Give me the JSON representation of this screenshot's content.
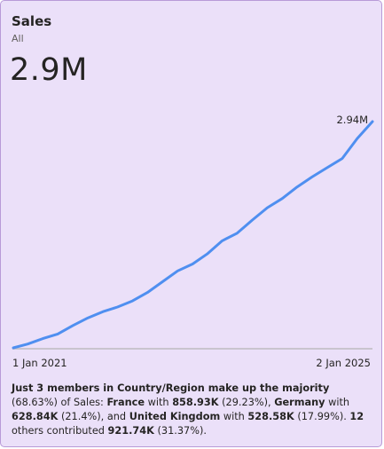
{
  "card": {
    "title": "Sales",
    "subtitle": "All",
    "kpi_value": "2.9M"
  },
  "colors": {
    "background": "#ebe0f9",
    "border": "#b89ad8",
    "line": "#4f8ff0",
    "axis": "#c9c4cf"
  },
  "chart_data": {
    "type": "line",
    "title": "",
    "xlabel": "",
    "ylabel": "",
    "x_start_label": "1 Jan 2021",
    "x_end_label": "2 Jan 2025",
    "end_value_label": "2.94M",
    "ylim": [
      0,
      2.94
    ],
    "series": [
      {
        "x": [
          "2021-01-01",
          "2021-03-01",
          "2021-05-01",
          "2021-07-01",
          "2021-09-01",
          "2021-11-01",
          "2022-01-01",
          "2022-03-01",
          "2022-05-01",
          "2022-07-01",
          "2022-09-01",
          "2022-11-01",
          "2023-01-01",
          "2023-03-01",
          "2023-05-01",
          "2023-07-01",
          "2023-09-01",
          "2023-11-01",
          "2024-01-01",
          "2024-03-01",
          "2024-05-01",
          "2024-07-01",
          "2024-09-01",
          "2024-11-01",
          "2025-01-02"
        ],
        "y": [
          0.0,
          0.05,
          0.12,
          0.18,
          0.29,
          0.39,
          0.47,
          0.53,
          0.61,
          0.72,
          0.86,
          1.0,
          1.09,
          1.22,
          1.39,
          1.49,
          1.66,
          1.82,
          1.94,
          2.09,
          2.22,
          2.34,
          2.46,
          2.72,
          2.94
        ]
      }
    ]
  },
  "narrative": {
    "p1": "Just 3 members in Country/Region make up the majority",
    "p2": " (68.63%) of Sales: ",
    "france": "France",
    "p3": " with ",
    "france_value": "858.93K",
    "france_pct": " (29.23%), ",
    "germany": "Germany",
    "p4": " with ",
    "germany_value": "628.84K",
    "germany_pct": " (21.4%), and ",
    "uk": "United Kingdom",
    "p5": " with ",
    "uk_value": "528.58K",
    "uk_pct": " (17.99%). ",
    "others_count": "12",
    "p6": " others contributed ",
    "others_value": "921.74K",
    "others_pct": " (31.37%)."
  }
}
